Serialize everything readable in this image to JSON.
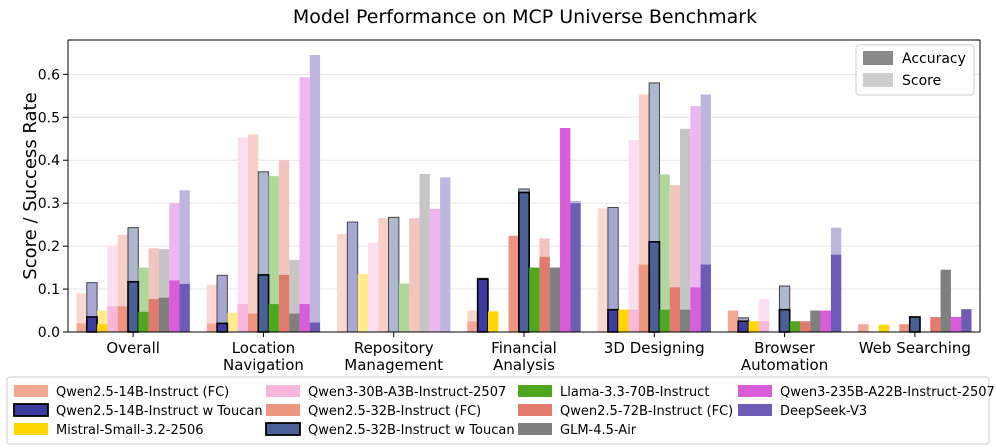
{
  "chart_data": {
    "type": "bar",
    "title": "Model Performance on MCP Universe Benchmark",
    "xlabel": "",
    "ylabel": "Score / Success Rate",
    "ylim": [
      0,
      0.68
    ],
    "yticks": [
      "0.0",
      "0.1",
      "0.2",
      "0.3",
      "0.4",
      "0.5",
      "0.6"
    ],
    "ytick_values": [
      0,
      0.1,
      0.2,
      0.3,
      0.4,
      0.5,
      0.6
    ],
    "grid": true,
    "categories": [
      "Overall",
      "Location\nNavigation",
      "Repository\nManagement",
      "Financial\nAnalysis",
      "3D Designing",
      "Browser\nAutomation",
      "Web Searching"
    ],
    "metric_legend": {
      "position": "top-right",
      "items": [
        {
          "label": "Accuracy",
          "color": "#8a8a8a"
        },
        {
          "label": "Score",
          "color": "#cccccc"
        }
      ]
    },
    "series": [
      {
        "name": "Qwen2.5-14B-Instruct (FC)",
        "color": "#f4a894",
        "highlight": false,
        "accuracy": [
          0.02,
          0.02,
          0.0,
          0.025,
          0.0,
          0.05,
          0.018
        ],
        "score": [
          0.09,
          0.11,
          0.228,
          0.05,
          0.288,
          0.05,
          0.018
        ]
      },
      {
        "name": "Qwen2.5-14B-Instruct w Toucan",
        "color": "#3c3ca0",
        "highlight": true,
        "accuracy": [
          0.035,
          0.02,
          0.0,
          0.123,
          0.052,
          0.025,
          0.0
        ],
        "score": [
          0.115,
          0.132,
          0.256,
          0.125,
          0.29,
          0.033,
          0.0
        ]
      },
      {
        "name": "Mistral-Small-3.2-2506",
        "color": "#ffd700",
        "highlight": false,
        "accuracy": [
          0.018,
          0.0,
          0.0,
          0.048,
          0.052,
          0.025,
          0.017
        ],
        "score": [
          0.05,
          0.045,
          0.135,
          0.048,
          0.052,
          0.025,
          0.017
        ]
      },
      {
        "name": "Qwen3-30B-A3B-Instruct-2507",
        "color": "#f7b6dc",
        "highlight": false,
        "accuracy": [
          0.06,
          0.065,
          0.0,
          0.0,
          0.052,
          0.025,
          0.0
        ],
        "score": [
          0.2,
          0.453,
          0.208,
          0.0,
          0.447,
          0.077,
          0.0
        ]
      },
      {
        "name": "Qwen2.5-32B-Instruct (FC)",
        "color": "#ee9580",
        "highlight": false,
        "accuracy": [
          0.06,
          0.043,
          0.0,
          0.224,
          0.157,
          0.0,
          0.018
        ],
        "score": [
          0.226,
          0.46,
          0.265,
          0.224,
          0.553,
          0.0,
          0.018
        ]
      },
      {
        "name": "Qwen2.5-32B-Instruct w Toucan",
        "color": "#4a6096",
        "highlight": true,
        "accuracy": [
          0.117,
          0.133,
          0.0,
          0.325,
          0.21,
          0.052,
          0.035
        ],
        "score": [
          0.243,
          0.373,
          0.267,
          0.333,
          0.58,
          0.107,
          0.035
        ]
      },
      {
        "name": "Llama-3.3-70B-Instruct",
        "color": "#4ea71f",
        "highlight": false,
        "accuracy": [
          0.047,
          0.065,
          0.0,
          0.15,
          0.052,
          0.025,
          0.0
        ],
        "score": [
          0.15,
          0.363,
          0.113,
          0.15,
          0.367,
          0.025,
          0.0
        ]
      },
      {
        "name": "Qwen2.5-72B-Instruct (FC)",
        "color": "#e07b6d",
        "highlight": false,
        "accuracy": [
          0.077,
          0.133,
          0.0,
          0.175,
          0.104,
          0.025,
          0.035
        ],
        "score": [
          0.195,
          0.4,
          0.265,
          0.218,
          0.342,
          0.025,
          0.035
        ]
      },
      {
        "name": "GLM-4.5-Air",
        "color": "#7f7f7f",
        "highlight": false,
        "accuracy": [
          0.08,
          0.043,
          0.0,
          0.15,
          0.052,
          0.05,
          0.145
        ],
        "score": [
          0.193,
          0.168,
          0.368,
          0.15,
          0.473,
          0.05,
          0.145
        ]
      },
      {
        "name": "Qwen3-235B-A22B-Instruct-2507",
        "color": "#d95cd9",
        "highlight": false,
        "accuracy": [
          0.12,
          0.065,
          0.0,
          0.475,
          0.104,
          0.05,
          0.035
        ],
        "score": [
          0.3,
          0.593,
          0.287,
          0.475,
          0.526,
          0.05,
          0.035
        ]
      },
      {
        "name": "DeepSeek-V3",
        "color": "#6e5bb5",
        "highlight": false,
        "accuracy": [
          0.112,
          0.022,
          0.0,
          0.3,
          0.157,
          0.18,
          0.053
        ],
        "score": [
          0.33,
          0.645,
          0.36,
          0.305,
          0.553,
          0.243,
          0.053
        ]
      }
    ]
  }
}
